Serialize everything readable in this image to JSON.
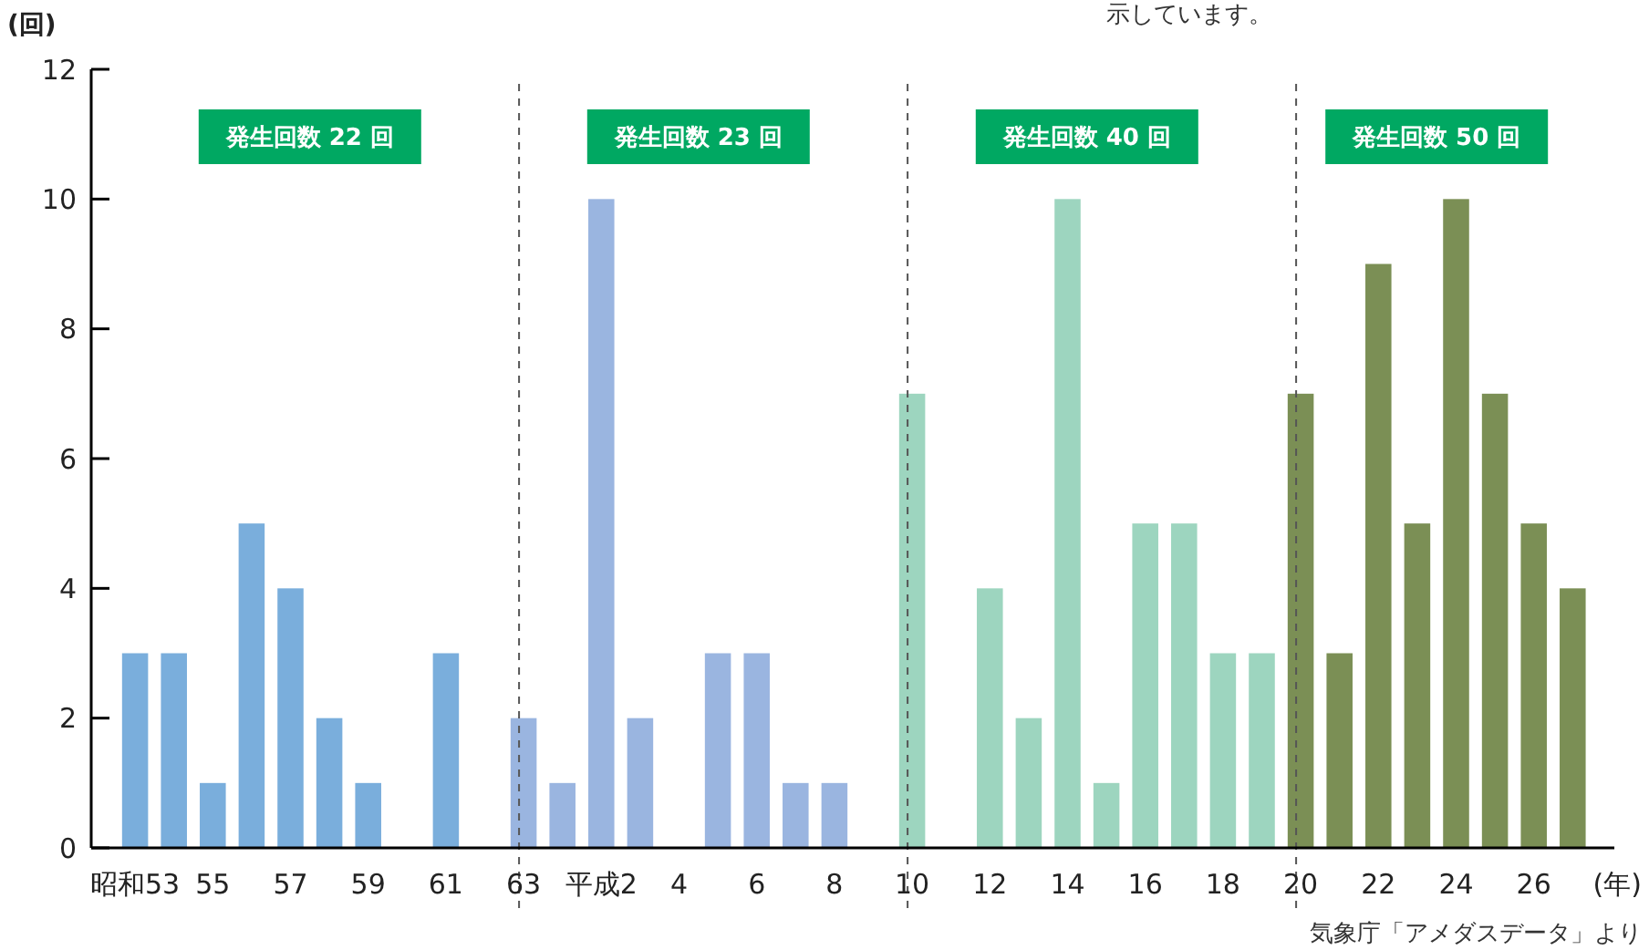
{
  "chart_data": {
    "type": "bar",
    "ylabel": "(回)",
    "xlabel": "(年)",
    "categories": [
      "昭和53",
      null,
      "55",
      null,
      "57",
      null,
      "59",
      null,
      "61",
      null,
      "63",
      null,
      "平成2",
      null,
      "4",
      null,
      "6",
      null,
      "8",
      null,
      "10",
      null,
      "12",
      null,
      "14",
      null,
      "16",
      null,
      "18",
      null,
      "20",
      null,
      "22",
      null,
      "24",
      null,
      "26",
      null
    ],
    "values": [
      3,
      3,
      1,
      5,
      4,
      2,
      1,
      0,
      3,
      0,
      2,
      1,
      10,
      2,
      0,
      3,
      3,
      1,
      1,
      0,
      7,
      0,
      4,
      2,
      10,
      1,
      5,
      5,
      3,
      3,
      7,
      3,
      9,
      5,
      10,
      7,
      5,
      4
    ],
    "colors": [
      "#7aaedc",
      "#7aaedc",
      "#7aaedc",
      "#7aaedc",
      "#7aaedc",
      "#7aaedc",
      "#7aaedc",
      "#7aaedc",
      "#7aaedc",
      "#7aaedc",
      "#9ab5e0",
      "#9ab5e0",
      "#9ab5e0",
      "#9ab5e0",
      "#9ab5e0",
      "#9ab5e0",
      "#9ab5e0",
      "#9ab5e0",
      "#9ab5e0",
      "#9ab5e0",
      "#9dd5bf",
      "#9dd5bf",
      "#9dd5bf",
      "#9dd5bf",
      "#9dd5bf",
      "#9dd5bf",
      "#9dd5bf",
      "#9dd5bf",
      "#9dd5bf",
      "#9dd5bf",
      "#7b8f55",
      "#7b8f55",
      "#7b8f55",
      "#7b8f55",
      "#7b8f55",
      "#7b8f55",
      "#7b8f55",
      "#7b8f55"
    ],
    "ylim": [
      0,
      12
    ],
    "yticks": [
      0,
      2,
      4,
      6,
      8,
      10,
      12
    ],
    "grid": false,
    "ref_lines": [
      {
        "axis": "x",
        "value": "63",
        "line_style": "dashed",
        "color": "#555555"
      },
      {
        "axis": "x",
        "value": "10",
        "line_style": "dashed",
        "color": "#555555"
      },
      {
        "axis": "x",
        "value": "20",
        "line_style": "dashed",
        "color": "#555555"
      }
    ],
    "annotations": [
      "発生回数 22 回",
      "発生回数 23 回",
      "発生回数 40 回",
      "発生回数 50 回",
      "示しています。",
      "気象庁「アメダスデータ」より"
    ]
  }
}
